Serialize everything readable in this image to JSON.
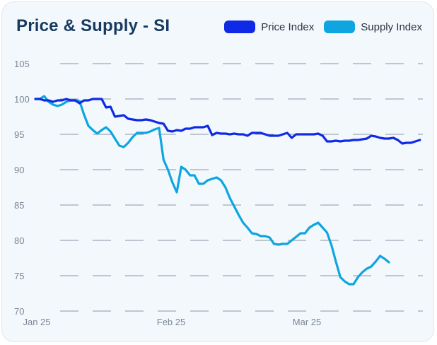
{
  "title": "Price & Supply - SI",
  "chart_data": {
    "type": "line",
    "x_ticks": [
      "Jan 25",
      "Feb 25",
      "Mar 25"
    ],
    "y_ticks": [
      70,
      75,
      80,
      85,
      90,
      95,
      100,
      105
    ],
    "ylim": [
      70,
      105
    ],
    "grid": true,
    "legend_position": "top-right",
    "series": [
      {
        "name": "Price Index",
        "color": "#0f2ae6",
        "values": [
          100.0,
          100.0,
          99.8,
          99.8,
          99.6,
          99.8,
          99.8,
          100.0,
          99.8,
          99.8,
          99.4,
          99.8,
          99.8,
          100.0,
          100.0,
          100.0,
          98.8,
          98.9,
          97.5,
          97.6,
          97.7,
          97.2,
          97.1,
          97.0,
          97.0,
          97.1,
          97.0,
          96.8,
          96.6,
          96.5,
          95.5,
          95.4,
          95.6,
          95.5,
          95.8,
          95.8,
          96.0,
          96.0,
          96.0,
          96.2,
          94.9,
          95.2,
          95.1,
          95.1,
          95.0,
          95.1,
          95.0,
          95.0,
          94.8,
          95.2,
          95.2,
          95.2,
          95.0,
          94.8,
          94.8,
          94.8,
          95.0,
          95.2,
          94.5,
          95.0,
          95.0,
          95.0,
          95.0,
          95.0,
          95.1,
          94.8,
          94.0,
          94.0,
          94.1,
          94.0,
          94.1,
          94.1,
          94.2,
          94.2,
          94.3,
          94.4,
          94.8,
          94.7,
          94.5,
          94.4,
          94.4,
          94.5,
          94.2,
          93.7,
          93.8,
          93.8,
          94.0,
          94.2
        ]
      },
      {
        "name": "Supply Index",
        "color": "#0ea5e0",
        "values": [
          100.0,
          100.0,
          100.4,
          99.6,
          99.2,
          99.0,
          99.2,
          99.6,
          99.8,
          99.8,
          99.7,
          97.8,
          96.2,
          95.6,
          95.1,
          95.6,
          96.0,
          95.4,
          94.4,
          93.4,
          93.2,
          93.8,
          94.6,
          95.2,
          95.2,
          95.2,
          95.4,
          95.7,
          95.9,
          91.4,
          90.0,
          88.2,
          86.8,
          90.4,
          90.0,
          89.2,
          89.2,
          88.0,
          88.0,
          88.5,
          88.7,
          88.9,
          88.5,
          87.5,
          86.0,
          84.8,
          83.6,
          82.5,
          81.8,
          81.0,
          80.9,
          80.6,
          80.6,
          80.4,
          79.5,
          79.4,
          79.5,
          79.5,
          80.0,
          80.5,
          81.0,
          81.0,
          81.8,
          82.2,
          82.5,
          81.8,
          81.1,
          79.3,
          77.0,
          74.8,
          74.2,
          73.8,
          73.8,
          74.8,
          75.5,
          76.0,
          76.3,
          77.0,
          77.8,
          77.4,
          76.9
        ]
      }
    ]
  }
}
